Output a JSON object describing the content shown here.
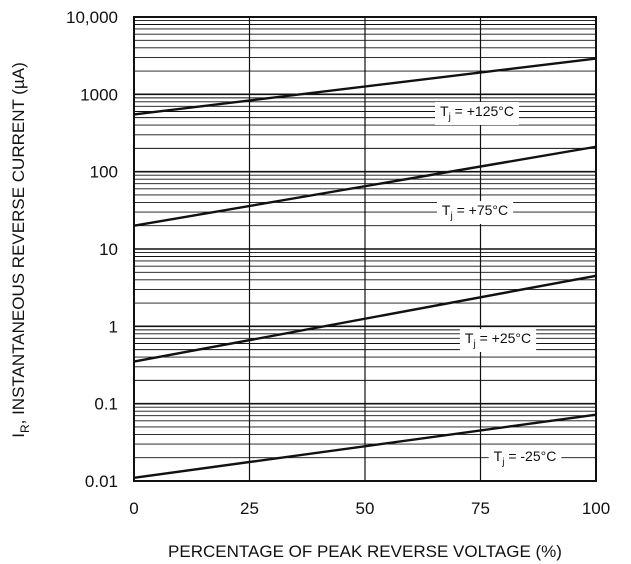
{
  "chart_data": {
    "type": "line",
    "title": "",
    "xlabel": "PERCENTAGE OF PEAK REVERSE VOLTAGE (%)",
    "ylabel": "I_R, INSTANTANEOUS REVERSE CURRENT (µA)",
    "ylabel_parts": {
      "symbol": "I",
      "subscript": "R",
      "rest": ", INSTANTANEOUS REVERSE CURRENT (µA)"
    },
    "xlim": [
      0,
      100
    ],
    "ylim": [
      0.01,
      10000
    ],
    "y_scale": "log",
    "grid": true,
    "x_ticks": [
      0,
      25,
      50,
      75,
      100
    ],
    "x_tick_labels": [
      "0",
      "25",
      "50",
      "75",
      "100"
    ],
    "y_ticks": [
      0.01,
      0.1,
      1,
      10,
      100,
      1000,
      10000
    ],
    "y_tick_labels": [
      "0.01",
      "0.1",
      "1",
      "10",
      "100",
      "1000",
      "10,000"
    ],
    "series": [
      {
        "label_symbol": "T",
        "label_sub": "j",
        "label_value": " = +125°C",
        "x": [
          0,
          100
        ],
        "y": [
          550,
          2900
        ]
      },
      {
        "label_symbol": "T",
        "label_sub": "j",
        "label_value": " = +75°C",
        "x": [
          0,
          100
        ],
        "y": [
          20,
          210
        ]
      },
      {
        "label_symbol": "T",
        "label_sub": "j",
        "label_value": " = +25°C",
        "x": [
          0,
          100
        ],
        "y": [
          0.35,
          4.5
        ]
      },
      {
        "label_symbol": "T",
        "label_sub": "j",
        "label_value": " = -25°C",
        "x": [
          0,
          100
        ],
        "y": [
          0.011,
          0.072
        ]
      }
    ]
  }
}
